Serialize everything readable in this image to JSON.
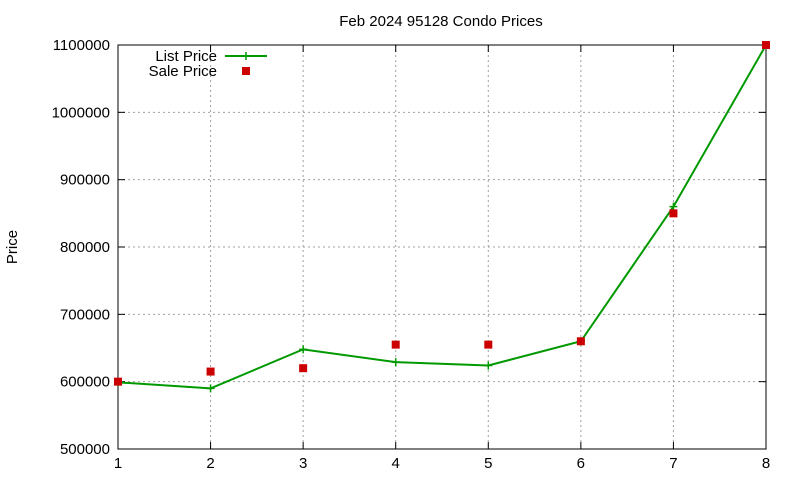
{
  "chart_data": {
    "type": "line",
    "title": "Feb 2024 95128 Condo Prices",
    "xlabel": "",
    "ylabel": "Price",
    "x": [
      1,
      2,
      3,
      4,
      5,
      6,
      7,
      8
    ],
    "xlim": [
      1,
      8
    ],
    "ylim": [
      500000,
      1100000
    ],
    "xticks": [
      "1",
      "2",
      "3",
      "4",
      "5",
      "6",
      "7",
      "8"
    ],
    "yticks": [
      "500000",
      "600000",
      "700000",
      "800000",
      "900000",
      "1000000",
      "1100000"
    ],
    "grid": true,
    "legend_position": "top-left",
    "series": [
      {
        "name": "List Price",
        "style": "line-with-plus-markers",
        "color": "#009900",
        "values": [
          599000,
          590000,
          648000,
          629000,
          624000,
          660000,
          860000,
          1100000
        ]
      },
      {
        "name": "Sale Price",
        "style": "square-points",
        "color": "#cc0000",
        "values": [
          600000,
          615000,
          620000,
          655000,
          655000,
          660000,
          850000,
          1100000
        ]
      }
    ]
  }
}
